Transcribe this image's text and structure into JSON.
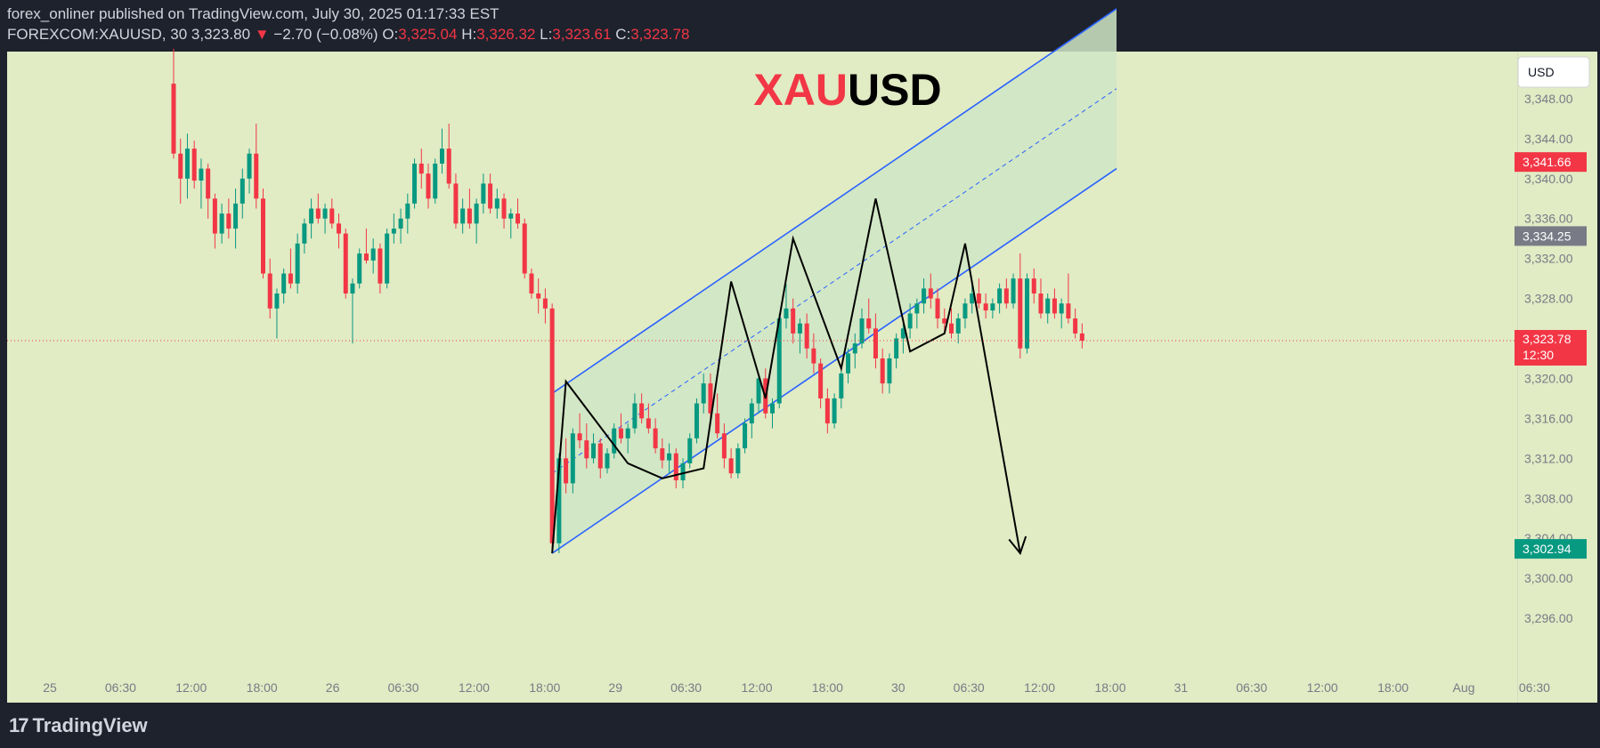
{
  "header": {
    "publisher_line": "forex_onliner published on TradingView.com, July 30, 2025 01:17:33 EST",
    "symbol": "FOREXCOM:XAUUSD, 30",
    "last": "3,323.80",
    "change": "−2.70 (−0.08%)",
    "open_label": "O:",
    "open": "3,325.04",
    "high_label": "H:",
    "high": "3,326.32",
    "low_label": "L:",
    "low": "3,323.61",
    "close_label": "C:",
    "close": "3,323.78"
  },
  "colors": {
    "background": "#1e222d",
    "plot_bg": "#e1ebc4",
    "channel_fill": "#cfe6c6",
    "bull": "#089981",
    "bear": "#f23645",
    "channel_line": "#2962ff",
    "path": "#000000"
  },
  "watermark": {
    "part1": "XAU",
    "part2": "USD"
  },
  "currency_button": "USD",
  "price_tags": {
    "upper": "3,341.66",
    "middle": "3,334.25",
    "current": "3,323.78",
    "countdown": "12:30",
    "lower": "3,302.94"
  },
  "footer": {
    "brand": "TradingView"
  },
  "chart_data": {
    "type": "candlestick",
    "y_ticks": [
      "3,348.00",
      "3,344.00",
      "3,340.00",
      "3,336.00",
      "3,332.00",
      "3,328.00",
      "3,324.00",
      "3,320.00",
      "3,316.00",
      "3,312.00",
      "3,308.00",
      "3,304.00",
      "3,300.00",
      "3,296.00"
    ],
    "ylim": [
      3292,
      3352
    ],
    "x_ticks": [
      "25",
      "06:30",
      "12:00",
      "18:00",
      "26",
      "06:30",
      "12:00",
      "18:00",
      "29",
      "06:30",
      "12:00",
      "18:00",
      "30",
      "06:30",
      "12:00",
      "18:00",
      "31",
      "06:30",
      "12:00",
      "18:00",
      "Aug",
      "06:30"
    ],
    "current_price": 3323.78,
    "ohlc": [
      [
        3349.5,
        3353.0,
        3342.0,
        3342.5
      ],
      [
        3342.5,
        3344.0,
        3337.5,
        3340.0
      ],
      [
        3340.0,
        3344.5,
        3338.0,
        3343.0
      ],
      [
        3343.0,
        3343.8,
        3339.0,
        3339.8
      ],
      [
        3339.8,
        3342.0,
        3337.0,
        3341.0
      ],
      [
        3341.0,
        3341.5,
        3336.0,
        3338.0
      ],
      [
        3338.0,
        3338.5,
        3333.0,
        3334.5
      ],
      [
        3334.5,
        3337.5,
        3333.5,
        3336.5
      ],
      [
        3336.5,
        3338.0,
        3334.0,
        3335.0
      ],
      [
        3335.0,
        3339.0,
        3333.0,
        3337.5
      ],
      [
        3337.5,
        3341.0,
        3336.0,
        3340.0
      ],
      [
        3340.0,
        3343.0,
        3338.5,
        3342.5
      ],
      [
        3342.5,
        3345.5,
        3337.0,
        3338.0
      ],
      [
        3338.0,
        3339.0,
        3330.0,
        3330.5
      ],
      [
        3330.5,
        3332.0,
        3326.0,
        3327.0
      ],
      [
        3327.0,
        3329.0,
        3324.0,
        3328.5
      ],
      [
        3328.5,
        3331.0,
        3327.5,
        3330.5
      ],
      [
        3330.5,
        3333.0,
        3329.0,
        3329.5
      ],
      [
        3329.5,
        3334.5,
        3328.5,
        3333.5
      ],
      [
        3333.5,
        3336.0,
        3332.5,
        3335.5
      ],
      [
        3335.5,
        3338.0,
        3334.0,
        3337.0
      ],
      [
        3337.0,
        3338.5,
        3335.5,
        3336.0
      ],
      [
        3336.0,
        3337.5,
        3334.5,
        3337.0
      ],
      [
        3337.0,
        3338.0,
        3335.0,
        3335.5
      ],
      [
        3335.5,
        3336.5,
        3333.0,
        3334.5
      ],
      [
        3334.5,
        3335.0,
        3328.0,
        3328.5
      ],
      [
        3328.5,
        3330.0,
        3323.5,
        3329.5
      ],
      [
        3329.5,
        3333.0,
        3329.0,
        3332.5
      ],
      [
        3332.5,
        3335.0,
        3331.5,
        3331.8
      ],
      [
        3331.8,
        3334.0,
        3330.5,
        3333.0
      ],
      [
        3333.0,
        3333.5,
        3328.5,
        3329.5
      ],
      [
        3329.5,
        3335.0,
        3329.0,
        3334.5
      ],
      [
        3334.5,
        3336.5,
        3333.5,
        3335.0
      ],
      [
        3335.0,
        3337.0,
        3333.5,
        3336.0
      ],
      [
        3336.0,
        3338.5,
        3334.5,
        3337.5
      ],
      [
        3337.5,
        3342.0,
        3337.0,
        3341.5
      ],
      [
        3341.5,
        3343.0,
        3339.0,
        3340.5
      ],
      [
        3340.5,
        3341.5,
        3337.0,
        3338.0
      ],
      [
        3338.0,
        3342.0,
        3337.5,
        3341.5
      ],
      [
        3341.5,
        3345.0,
        3340.5,
        3343.0
      ],
      [
        3343.0,
        3345.5,
        3339.0,
        3339.5
      ],
      [
        3339.5,
        3340.5,
        3335.0,
        3335.5
      ],
      [
        3335.5,
        3338.0,
        3334.5,
        3337.0
      ],
      [
        3337.0,
        3339.0,
        3335.0,
        3335.5
      ],
      [
        3335.5,
        3338.0,
        3333.5,
        3337.5
      ],
      [
        3337.5,
        3340.5,
        3336.5,
        3339.5
      ],
      [
        3339.5,
        3340.5,
        3336.5,
        3337.0
      ],
      [
        3337.0,
        3339.0,
        3336.0,
        3338.0
      ],
      [
        3338.0,
        3338.5,
        3335.0,
        3336.0
      ],
      [
        3336.0,
        3337.0,
        3334.0,
        3336.5
      ],
      [
        3336.5,
        3338.0,
        3335.0,
        3335.5
      ],
      [
        3335.5,
        3336.0,
        3330.0,
        3330.5
      ],
      [
        3330.5,
        3331.0,
        3328.0,
        3328.5
      ],
      [
        3328.5,
        3330.0,
        3326.5,
        3328.0
      ],
      [
        3328.0,
        3329.0,
        3325.5,
        3327.0
      ],
      [
        3327.0,
        3327.5,
        3302.5,
        3303.5
      ],
      [
        3303.5,
        3312.5,
        3302.5,
        3312.0
      ],
      [
        3312.0,
        3314.0,
        3308.5,
        3309.5
      ],
      [
        3309.5,
        3315.0,
        3308.5,
        3314.5
      ],
      [
        3314.5,
        3316.5,
        3313.0,
        3313.8
      ],
      [
        3313.8,
        3315.5,
        3311.0,
        3312.0
      ],
      [
        3312.0,
        3314.5,
        3311.5,
        3313.5
      ],
      [
        3313.5,
        3314.0,
        3310.0,
        3311.0
      ],
      [
        3311.0,
        3313.0,
        3310.5,
        3312.5
      ],
      [
        3312.5,
        3315.5,
        3312.0,
        3315.0
      ],
      [
        3315.0,
        3316.5,
        3313.5,
        3314.0
      ],
      [
        3314.0,
        3315.5,
        3312.5,
        3315.0
      ],
      [
        3315.0,
        3318.5,
        3314.5,
        3317.5
      ],
      [
        3317.5,
        3318.5,
        3315.5,
        3316.0
      ],
      [
        3316.0,
        3317.5,
        3314.5,
        3315.0
      ],
      [
        3315.0,
        3316.0,
        3312.5,
        3313.0
      ],
      [
        3313.0,
        3314.0,
        3311.0,
        3311.8
      ],
      [
        3311.8,
        3313.5,
        3310.5,
        3312.5
      ],
      [
        3312.5,
        3313.0,
        3309.0,
        3309.8
      ],
      [
        3309.8,
        3312.0,
        3309.0,
        3311.5
      ],
      [
        3311.5,
        3314.5,
        3311.0,
        3314.0
      ],
      [
        3314.0,
        3318.0,
        3313.5,
        3317.5
      ],
      [
        3317.5,
        3320.5,
        3316.5,
        3319.5
      ],
      [
        3319.5,
        3320.5,
        3316.0,
        3316.5
      ],
      [
        3316.5,
        3318.5,
        3314.0,
        3314.5
      ],
      [
        3314.5,
        3315.5,
        3311.0,
        3312.0
      ],
      [
        3312.0,
        3313.0,
        3310.0,
        3310.5
      ],
      [
        3310.5,
        3313.5,
        3310.0,
        3313.0
      ],
      [
        3313.0,
        3316.0,
        3312.5,
        3315.5
      ],
      [
        3315.5,
        3318.0,
        3314.0,
        3317.5
      ],
      [
        3317.5,
        3320.5,
        3316.5,
        3320.0
      ],
      [
        3320.0,
        3321.0,
        3316.0,
        3316.5
      ],
      [
        3316.5,
        3318.0,
        3315.0,
        3317.5
      ],
      [
        3317.5,
        3326.5,
        3317.0,
        3326.0
      ],
      [
        3326.0,
        3329.5,
        3325.0,
        3327.0
      ],
      [
        3327.0,
        3328.0,
        3323.5,
        3324.5
      ],
      [
        3324.5,
        3326.0,
        3322.5,
        3325.5
      ],
      [
        3325.5,
        3326.5,
        3322.0,
        3323.0
      ],
      [
        3323.0,
        3324.5,
        3320.5,
        3321.5
      ],
      [
        3321.5,
        3322.0,
        3317.0,
        3318.0
      ],
      [
        3318.0,
        3319.0,
        3314.5,
        3315.5
      ],
      [
        3315.5,
        3318.5,
        3315.0,
        3318.0
      ],
      [
        3318.0,
        3321.0,
        3317.0,
        3320.5
      ],
      [
        3320.5,
        3323.0,
        3319.5,
        3322.5
      ],
      [
        3322.5,
        3324.5,
        3321.0,
        3323.5
      ],
      [
        3323.5,
        3327.0,
        3323.0,
        3326.0
      ],
      [
        3326.0,
        3328.0,
        3324.5,
        3325.0
      ],
      [
        3325.0,
        3326.5,
        3321.0,
        3322.0
      ],
      [
        3322.0,
        3323.0,
        3318.5,
        3319.5
      ],
      [
        3319.5,
        3322.5,
        3318.5,
        3322.0
      ],
      [
        3322.0,
        3324.5,
        3321.0,
        3324.0
      ],
      [
        3324.0,
        3326.0,
        3322.5,
        3325.0
      ],
      [
        3325.0,
        3327.5,
        3324.0,
        3326.5
      ],
      [
        3326.5,
        3328.0,
        3325.0,
        3327.5
      ],
      [
        3327.5,
        3330.0,
        3326.5,
        3329.0
      ],
      [
        3329.0,
        3330.5,
        3327.0,
        3328.0
      ],
      [
        3328.0,
        3329.0,
        3325.0,
        3326.0
      ],
      [
        3326.0,
        3327.0,
        3324.5,
        3325.5
      ],
      [
        3325.5,
        3327.0,
        3324.0,
        3324.5
      ],
      [
        3324.5,
        3326.5,
        3323.5,
        3326.0
      ],
      [
        3326.0,
        3328.0,
        3325.0,
        3327.5
      ],
      [
        3327.5,
        3329.5,
        3326.5,
        3328.5
      ],
      [
        3328.5,
        3330.0,
        3327.0,
        3327.5
      ],
      [
        3327.5,
        3328.5,
        3326.0,
        3326.8
      ],
      [
        3326.8,
        3328.0,
        3326.0,
        3327.5
      ],
      [
        3327.5,
        3329.5,
        3326.5,
        3329.0
      ],
      [
        3329.0,
        3330.0,
        3327.0,
        3327.5
      ],
      [
        3327.5,
        3330.5,
        3327.0,
        3330.0
      ],
      [
        3330.0,
        3332.5,
        3322.0,
        3323.0
      ],
      [
        3323.0,
        3330.5,
        3322.5,
        3330.0
      ],
      [
        3330.0,
        3331.0,
        3327.5,
        3328.5
      ],
      [
        3328.5,
        3330.0,
        3326.0,
        3326.5
      ],
      [
        3326.5,
        3328.5,
        3325.5,
        3328.0
      ],
      [
        3328.0,
        3329.0,
        3326.0,
        3326.5
      ],
      [
        3326.5,
        3328.0,
        3325.0,
        3327.5
      ],
      [
        3327.5,
        3330.5,
        3325.5,
        3326.0
      ],
      [
        3326.0,
        3327.0,
        3324.0,
        3324.5
      ],
      [
        3324.5,
        3325.5,
        3323.0,
        3323.78
      ]
    ],
    "channel": {
      "upper": [
        [
          55,
          3318.5
        ],
        [
          137,
          3357.0
        ]
      ],
      "lower": [
        [
          55,
          3302.5
        ],
        [
          137,
          3341.0
        ]
      ],
      "mid": [
        [
          55,
          3310.5
        ],
        [
          137,
          3349.0
        ]
      ]
    },
    "projection": [
      [
        55,
        3302.5
      ],
      [
        57,
        3319.7
      ],
      [
        66,
        3311.5
      ],
      [
        71,
        3310.0
      ],
      [
        77,
        3311.0
      ],
      [
        81,
        3329.7
      ],
      [
        86,
        3318.0
      ],
      [
        90,
        3334.0
      ],
      [
        97,
        3321.0
      ],
      [
        102,
        3338.0
      ],
      [
        107,
        3322.7
      ],
      [
        112,
        3324.5
      ],
      [
        115,
        3333.5
      ],
      [
        123,
        3302.5
      ]
    ]
  }
}
